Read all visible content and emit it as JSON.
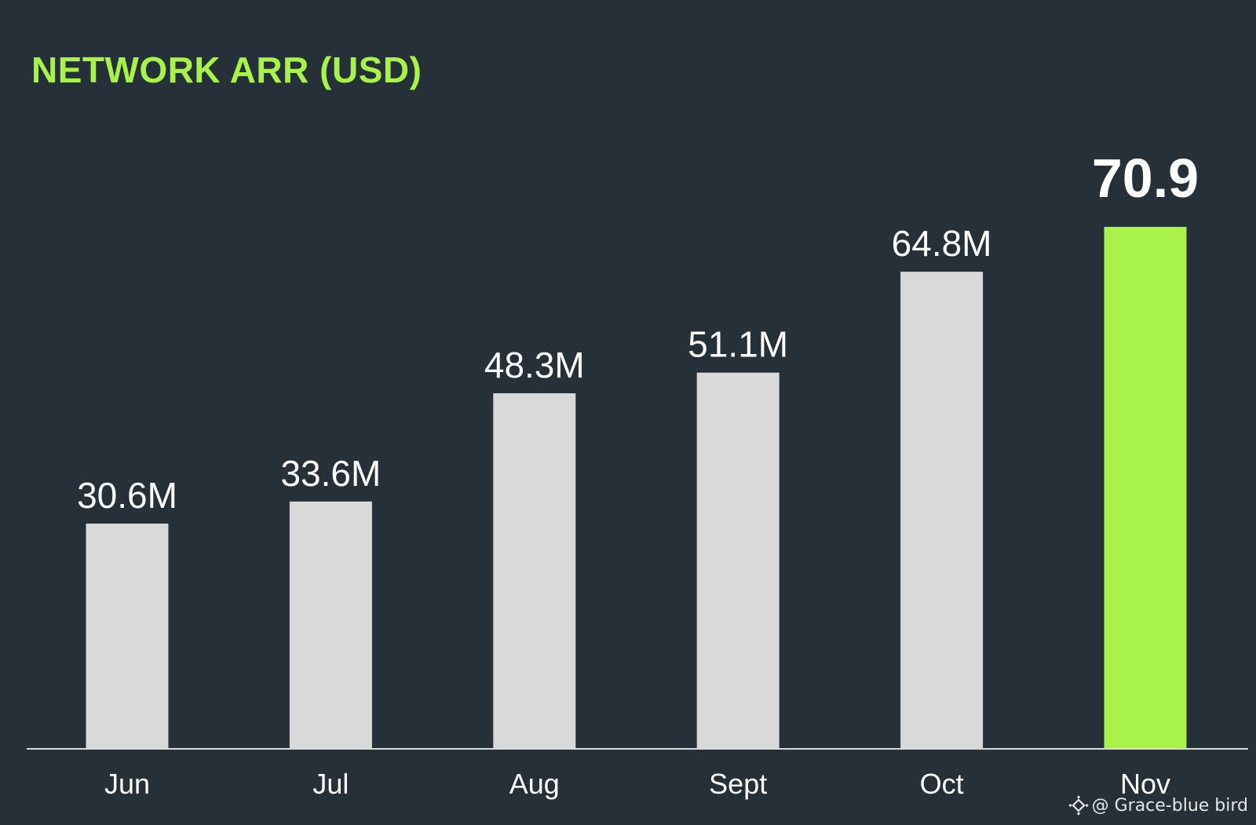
{
  "chart_data": {
    "type": "bar",
    "title": "NETWORK ARR (USD)",
    "categories": [
      "Jun",
      "Jul",
      "Aug",
      "Sept",
      "Oct",
      "Nov"
    ],
    "values": [
      30.6,
      33.6,
      48.3,
      51.1,
      64.8,
      70.9
    ],
    "value_labels": [
      "30.6M",
      "33.6M",
      "48.3M",
      "51.1M",
      "64.8M",
      "70.9"
    ],
    "unit": "M",
    "xlabel": "",
    "ylabel": "",
    "ylim": [
      0,
      70.9
    ],
    "grid": false,
    "legend": "none",
    "colors": {
      "background": "#253038",
      "bar": "#d9d9d9",
      "highlight_bar": "#a8f24a",
      "title": "#a8f24a",
      "label": "#ffffff",
      "axis": "#d9d9d9"
    },
    "highlight_index": 5
  },
  "watermark": {
    "text": "@ Grace-blue bird",
    "icon": "binance-diamond-icon"
  }
}
